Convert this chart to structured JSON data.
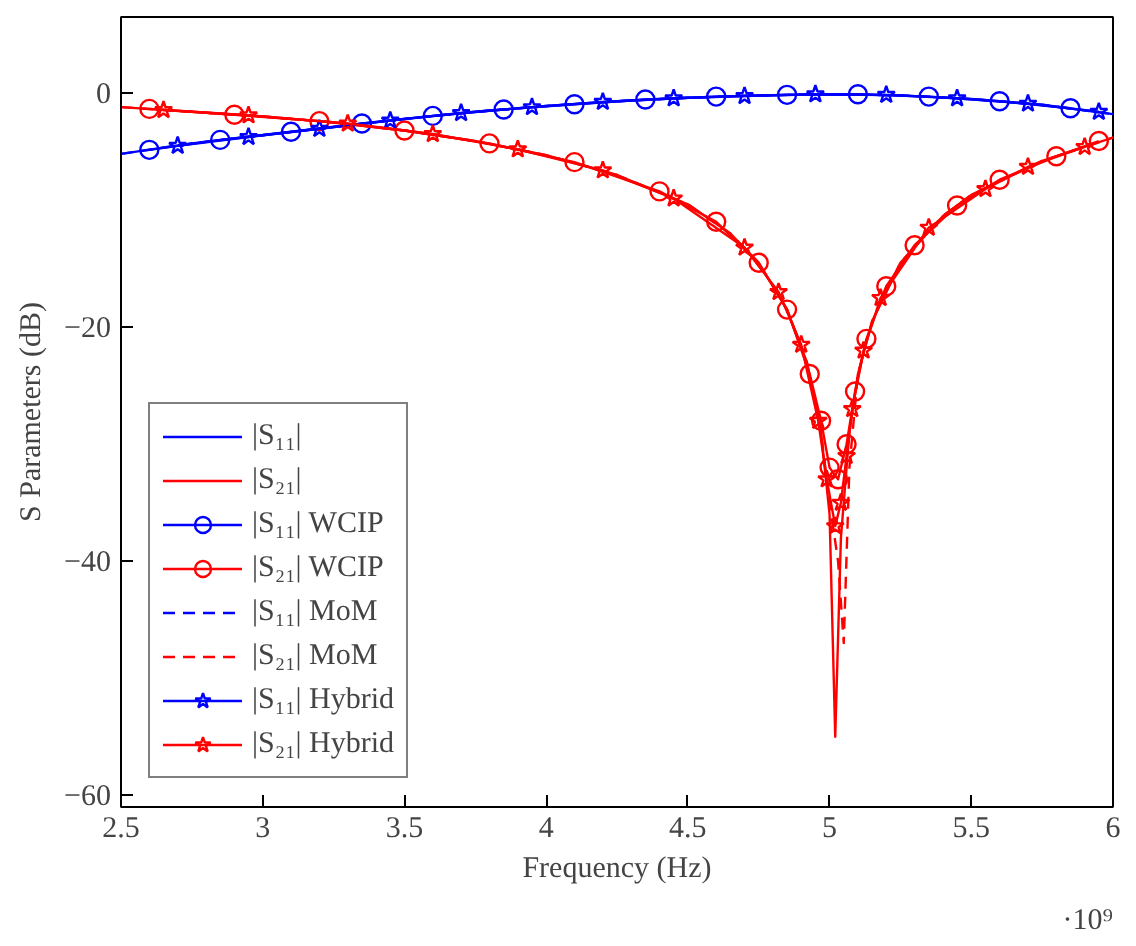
{
  "chart_data": {
    "type": "line",
    "xlabel": "Frequency (Hz)",
    "ylabel": "S Parameters (dB)",
    "annotations": [
      "·10⁹"
    ],
    "xlim": [
      2.5,
      6
    ],
    "ylim": [
      -61,
      6.5
    ],
    "xticks": [
      2.5,
      3,
      3.5,
      4,
      4.5,
      5,
      5.5,
      6
    ],
    "yticks": [
      -60,
      -40,
      -20,
      0
    ],
    "grid": false,
    "legend": "bottom left",
    "x": [
      2.5,
      2.75,
      3.0,
      3.25,
      3.5,
      3.75,
      4.0,
      4.25,
      4.5,
      4.75,
      5.0,
      5.25,
      5.5,
      5.75,
      6.0
    ],
    "series": [
      {
        "name": "|S₁₁|",
        "color": "#0000ff",
        "marker": "none",
        "line_style": "solid",
        "values": [
          -5.2,
          -4.3,
          -3.6,
          -2.9,
          -2.2,
          -1.6,
          -1.1,
          -0.7,
          -0.4,
          -0.2,
          -0.1,
          -0.2,
          -0.5,
          -1.0,
          -1.8
        ]
      },
      {
        "name": "|S₂₁|",
        "color": "#ff0000",
        "marker": "none",
        "line_style": "solid",
        "x": [
          2.5,
          2.75,
          3.0,
          3.25,
          3.5,
          3.75,
          4.0,
          4.25,
          4.5,
          4.65,
          4.75,
          4.85,
          4.92,
          4.97,
          5.0,
          5.02,
          5.04,
          5.07,
          5.1,
          5.15,
          5.25,
          5.4,
          5.5,
          5.75,
          6.0
        ],
        "values": [
          -1.2,
          -1.6,
          -2.0,
          -2.5,
          -3.2,
          -4.1,
          -5.3,
          -7.0,
          -9.5,
          -12,
          -14.5,
          -18.5,
          -23,
          -29,
          -36,
          -55,
          -38,
          -29,
          -24,
          -19.5,
          -14.5,
          -10.5,
          -8.7,
          -5.8,
          -3.8
        ]
      },
      {
        "name": "|S₁₁| WCIP",
        "color": "#0000ff",
        "marker": "circle",
        "line_style": "solid",
        "x": [
          2.6,
          2.85,
          3.1,
          3.35,
          3.6,
          3.85,
          4.1,
          4.35,
          4.6,
          4.85,
          5.1,
          5.35,
          5.6,
          5.85
        ],
        "values": [
          -4.85,
          -4.0,
          -3.3,
          -2.6,
          -1.95,
          -1.4,
          -0.95,
          -0.55,
          -0.3,
          -0.15,
          -0.1,
          -0.3,
          -0.7,
          -1.3
        ]
      },
      {
        "name": "|S₂₁| WCIP",
        "color": "#ff0000",
        "marker": "circle",
        "line_style": "solid",
        "x": [
          2.6,
          2.9,
          3.2,
          3.5,
          3.8,
          4.1,
          4.4,
          4.6,
          4.75,
          4.85,
          4.93,
          4.97,
          5.0,
          5.03,
          5.06,
          5.09,
          5.13,
          5.2,
          5.3,
          5.45,
          5.6,
          5.8,
          5.95
        ],
        "values": [
          -1.35,
          -1.85,
          -2.4,
          -3.2,
          -4.3,
          -5.9,
          -8.4,
          -11,
          -14.5,
          -18.5,
          -24,
          -28,
          -32,
          -33,
          -30,
          -25.5,
          -21,
          -16.5,
          -13,
          -9.6,
          -7.4,
          -5.4,
          -4.1
        ]
      },
      {
        "name": "|S₁₁| MoM",
        "color": "#0000ff",
        "marker": "none",
        "line_style": "dashed",
        "values": [
          -5.2,
          -4.3,
          -3.6,
          -2.9,
          -2.2,
          -1.6,
          -1.1,
          -0.7,
          -0.4,
          -0.2,
          -0.1,
          -0.2,
          -0.5,
          -1.0,
          -1.8
        ]
      },
      {
        "name": "|S₂₁| MoM",
        "color": "#ff0000",
        "marker": "none",
        "line_style": "dashed",
        "x": [
          2.5,
          2.75,
          3.0,
          3.25,
          3.5,
          3.75,
          4.0,
          4.25,
          4.5,
          4.65,
          4.75,
          4.85,
          4.92,
          4.97,
          5.0,
          5.03,
          5.05,
          5.07,
          5.1,
          5.15,
          5.25,
          5.4,
          5.5,
          5.75,
          6.0
        ],
        "values": [
          -1.2,
          -1.6,
          -2.0,
          -2.5,
          -3.2,
          -4.1,
          -5.3,
          -7.0,
          -9.5,
          -12,
          -14.5,
          -18.5,
          -23,
          -29,
          -35,
          -40,
          -47,
          -32,
          -24,
          -19.5,
          -14.5,
          -10.5,
          -8.7,
          -5.8,
          -3.8
        ]
      },
      {
        "name": "|S₁₁| Hybrid",
        "color": "#0000ff",
        "marker": "star",
        "line_style": "solid",
        "x": [
          2.7,
          2.95,
          3.2,
          3.45,
          3.7,
          3.95,
          4.2,
          4.45,
          4.7,
          4.95,
          5.2,
          5.45,
          5.7,
          5.95
        ],
        "values": [
          -4.5,
          -3.75,
          -3.05,
          -2.35,
          -1.7,
          -1.2,
          -0.75,
          -0.45,
          -0.25,
          -0.1,
          -0.15,
          -0.45,
          -0.9,
          -1.6
        ]
      },
      {
        "name": "|S₂₁| Hybrid",
        "color": "#ff0000",
        "marker": "star",
        "line_style": "solid",
        "x": [
          2.65,
          2.95,
          3.3,
          3.6,
          3.9,
          4.2,
          4.45,
          4.7,
          4.82,
          4.9,
          4.96,
          4.99,
          5.02,
          5.04,
          5.06,
          5.08,
          5.12,
          5.18,
          5.35,
          5.55,
          5.7,
          5.9
        ],
        "values": [
          -1.45,
          -1.9,
          -2.6,
          -3.5,
          -4.8,
          -6.6,
          -9.0,
          -13.2,
          -17,
          -21.5,
          -28,
          -33,
          -37,
          -35,
          -31,
          -27,
          -22,
          -17.5,
          -11.5,
          -8.2,
          -6.3,
          -4.6
        ]
      }
    ]
  }
}
